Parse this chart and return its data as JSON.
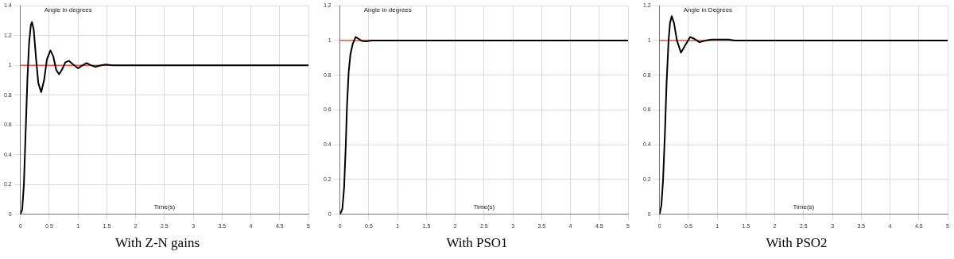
{
  "chart_data": [
    {
      "type": "line",
      "title": "With Z-N gains",
      "xlabel": "Time(s)",
      "ylabel": "Angle in degrees",
      "xlim": [
        0,
        5
      ],
      "xticks": [
        0,
        0.5,
        1,
        1.5,
        2,
        2.5,
        3,
        3.5,
        4,
        4.5,
        5
      ],
      "ylim": [
        0,
        1.4
      ],
      "yticks": [
        0,
        0.2,
        0.4,
        0.6,
        0.8,
        1,
        1.2,
        1.4
      ],
      "grid": true,
      "legend": false,
      "marker": "none",
      "ref_lines": [
        {
          "axis": "y",
          "value": 1,
          "color": "#e8583c"
        }
      ],
      "series": [
        {
          "color": "#000000",
          "x": [
            0,
            0.03,
            0.06,
            0.09,
            0.12,
            0.15,
            0.18,
            0.2,
            0.23,
            0.27,
            0.31,
            0.36,
            0.41,
            0.46,
            0.52,
            0.57,
            0.62,
            0.67,
            0.72,
            0.78,
            0.84,
            0.9,
            1.0,
            1.08,
            1.15,
            1.22,
            1.3,
            1.4,
            1.48,
            1.6,
            5
          ],
          "values": [
            0,
            0.03,
            0.2,
            0.55,
            0.9,
            1.15,
            1.27,
            1.29,
            1.24,
            1.05,
            0.88,
            0.82,
            0.9,
            1.04,
            1.1,
            1.06,
            0.97,
            0.94,
            0.97,
            1.02,
            1.03,
            1.01,
            0.98,
            1.0,
            1.015,
            1.0,
            0.99,
            1.0,
            1.005,
            1.0,
            1.0
          ]
        }
      ]
    },
    {
      "type": "line",
      "title": "With PSO1",
      "xlabel": "Time(s)",
      "ylabel": "Angle in degrees",
      "xlim": [
        0,
        5
      ],
      "xticks": [
        0,
        0.5,
        1,
        1.5,
        2,
        2.5,
        3,
        3.5,
        4,
        4.5,
        5
      ],
      "ylim": [
        0,
        1.2
      ],
      "yticks": [
        0,
        0.2,
        0.4,
        0.6,
        0.8,
        1,
        1.2
      ],
      "grid": true,
      "legend": false,
      "marker": "none",
      "ref_lines": [
        {
          "axis": "y",
          "value": 1,
          "color": "#e8583c"
        }
      ],
      "series": [
        {
          "color": "#000000",
          "x": [
            0,
            0.04,
            0.07,
            0.1,
            0.12,
            0.15,
            0.18,
            0.22,
            0.27,
            0.32,
            0.38,
            0.45,
            0.55,
            5
          ],
          "values": [
            0,
            0.03,
            0.15,
            0.4,
            0.62,
            0.82,
            0.92,
            0.98,
            1.02,
            1.01,
            0.997,
            0.995,
            1.0,
            1.0
          ]
        }
      ]
    },
    {
      "type": "line",
      "title": "With PSO2",
      "xlabel": "Time(s)",
      "ylabel": "Angle in Degrees",
      "xlim": [
        0,
        5
      ],
      "xticks": [
        0,
        0.5,
        1,
        1.5,
        2,
        2.5,
        3,
        3.5,
        4,
        4.5,
        5
      ],
      "ylim": [
        0,
        1.2
      ],
      "yticks": [
        0,
        0.2,
        0.4,
        0.6,
        0.8,
        1,
        1.2
      ],
      "grid": true,
      "legend": false,
      "marker": "none",
      "ref_lines": [
        {
          "axis": "y",
          "value": 1,
          "color": "#e8583c"
        }
      ],
      "series": [
        {
          "color": "#000000",
          "x": [
            0,
            0.03,
            0.06,
            0.09,
            0.12,
            0.155,
            0.18,
            0.21,
            0.25,
            0.3,
            0.37,
            0.44,
            0.53,
            0.6,
            0.69,
            0.8,
            0.9,
            1.2,
            1.3,
            5
          ],
          "values": [
            0,
            0.05,
            0.2,
            0.45,
            0.75,
            1.0,
            1.1,
            1.14,
            1.1,
            1.0,
            0.93,
            0.97,
            1.02,
            1.01,
            0.99,
            1.0,
            1.005,
            1.005,
            1.0,
            1.0
          ]
        }
      ]
    }
  ]
}
